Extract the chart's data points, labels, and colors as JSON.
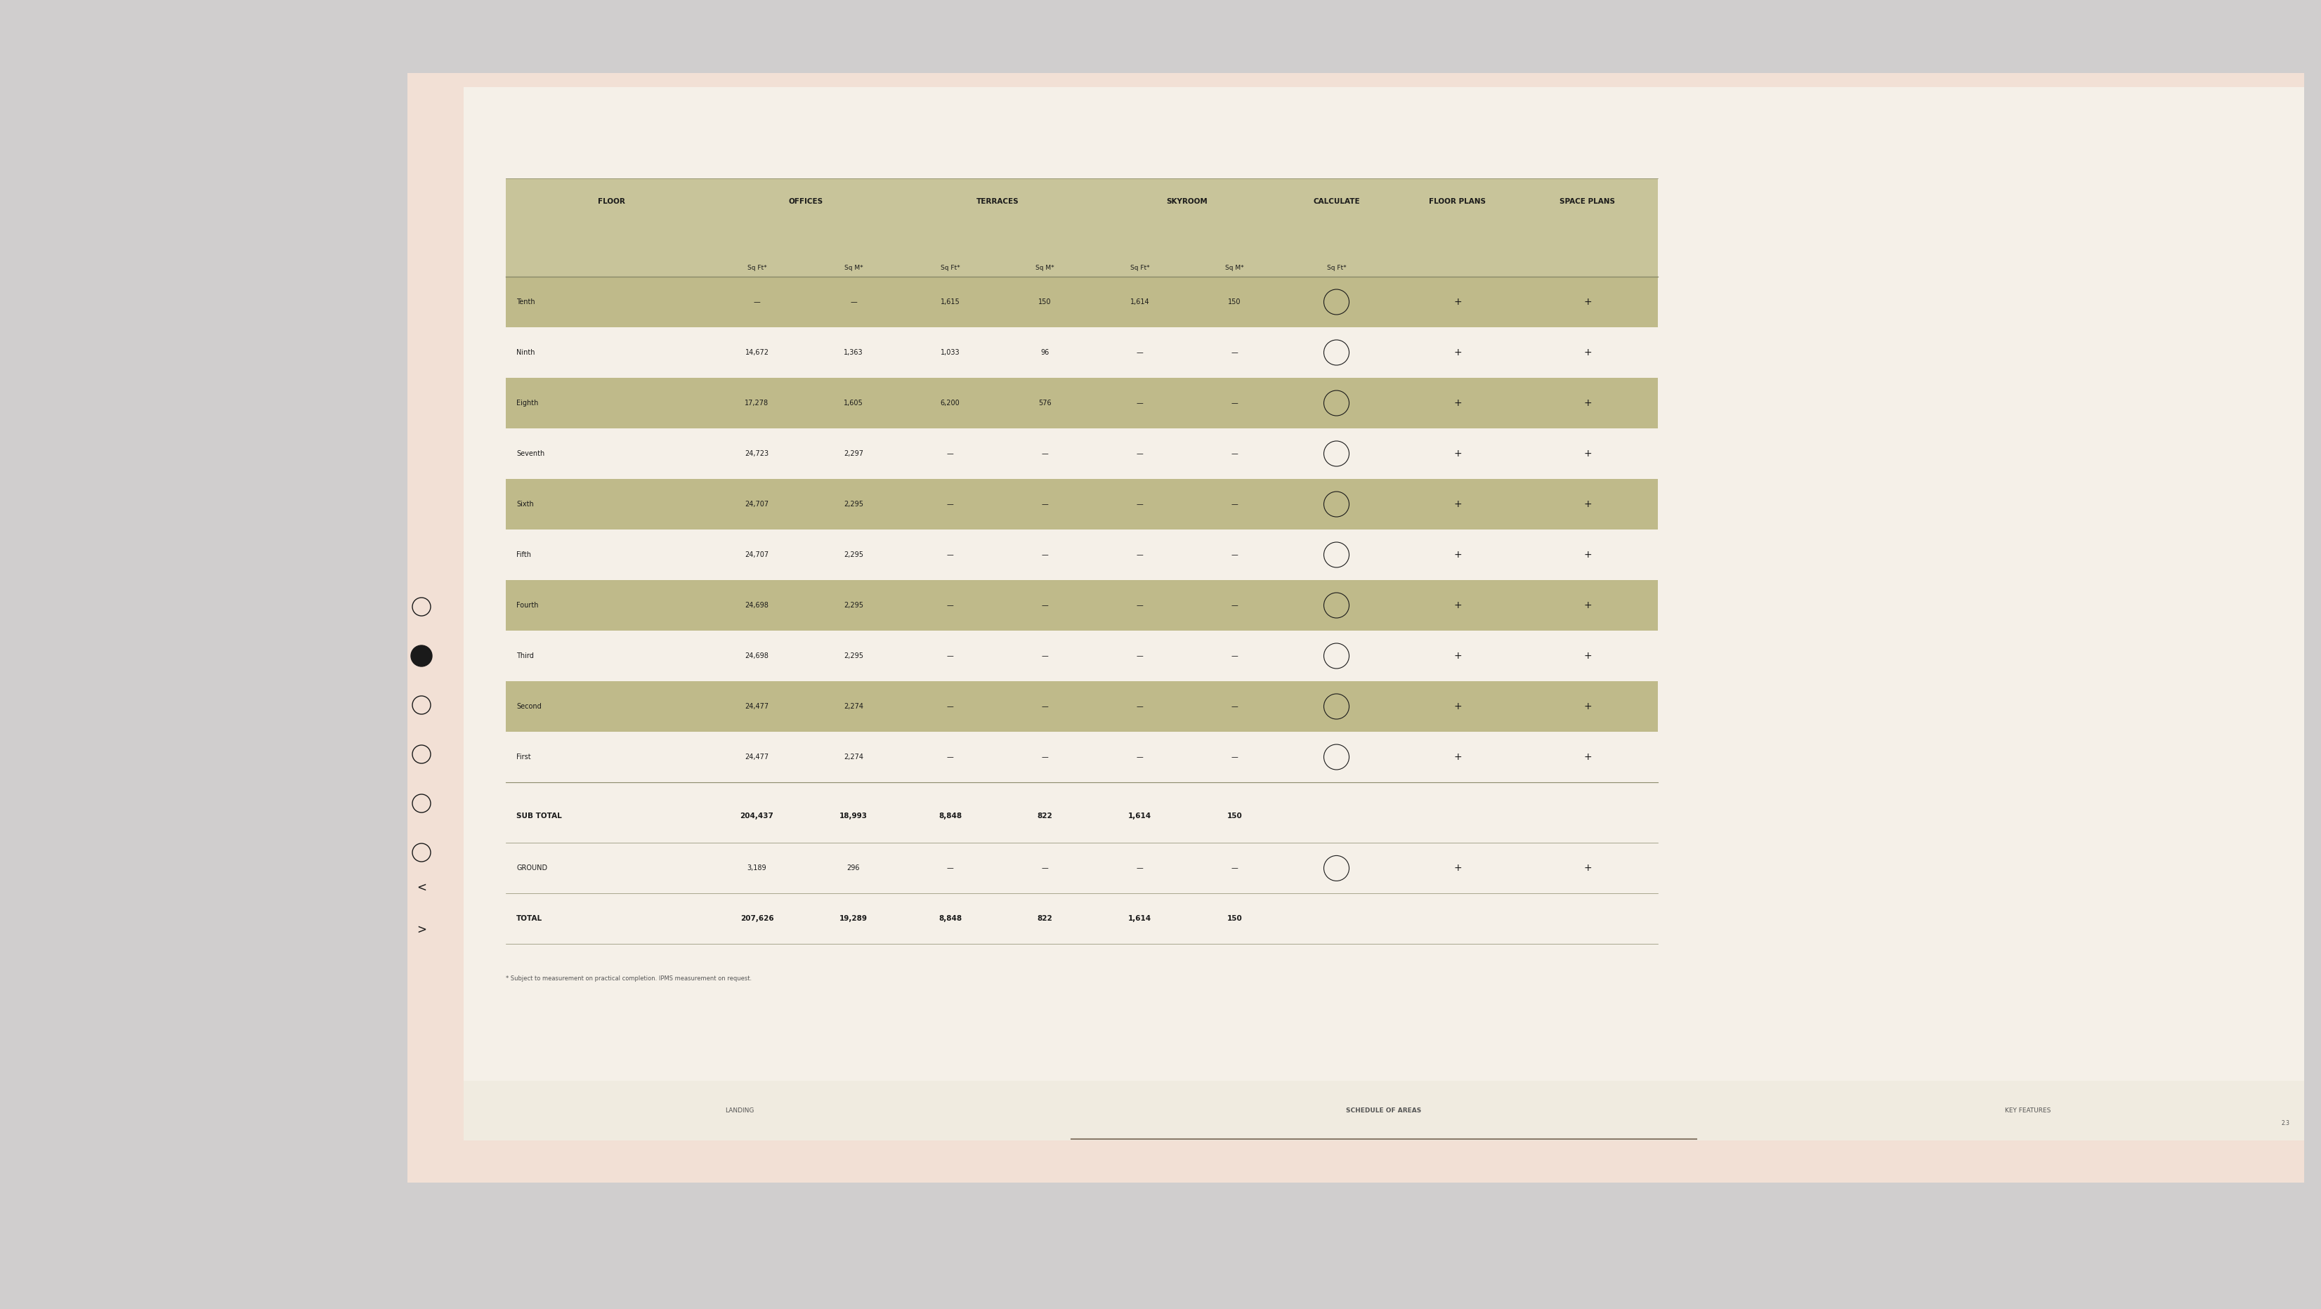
{
  "bg_color": "#d0cece",
  "outer_panel_color": "#f2e0d5",
  "inner_panel_color": "#f5f0e8",
  "table_bg_color": "#f5f0e8",
  "header_bg_color": "#c8c49a",
  "alt_row_color": "#bfba8a",
  "subtotal_bg_color": "#f5f0e8",
  "total_bg_color": "#f5f0e8",
  "separator_color": "#8a8a6a",
  "text_color": "#1a1a1a",
  "footer_text_color": "#555555",
  "columns": [
    "FLOOR",
    "OFFICES\nSq Ft*",
    "OFFICES\nSq M*",
    "TERRACES\nSq Ft*",
    "TERRACES\nSq M*",
    "SKYROOM\nSq Ft*",
    "SKYROOM\nSq M*",
    "CALCULATE\nSq Ft*",
    "FLOOR PLANS",
    "SPACE PLANS"
  ],
  "col_headers_line1": [
    "FLOOR",
    "OFFICES",
    "",
    "TERRACES",
    "",
    "SKYROOM",
    "",
    "CALCULATE",
    "FLOOR PLANS",
    "SPACE PLANS"
  ],
  "col_headers_line2": [
    "",
    "Sq Ft*",
    "Sq M*",
    "Sq Ft*",
    "Sq M*",
    "Sq Ft*",
    "Sq M*",
    "Sq Ft*",
    "",
    ""
  ],
  "rows": [
    [
      "Tenth",
      "—",
      "—",
      "1,615",
      "150",
      "1,614",
      "150",
      "",
      "+",
      "+"
    ],
    [
      "Ninth",
      "14,672",
      "1,363",
      "1,033",
      "96",
      "—",
      "—",
      "",
      "+",
      "+"
    ],
    [
      "Eighth",
      "17,278",
      "1,605",
      "6,200",
      "576",
      "—",
      "—",
      "",
      "+",
      "+"
    ],
    [
      "Seventh",
      "24,723",
      "2,297",
      "—",
      "—",
      "—",
      "—",
      "",
      "+",
      "+"
    ],
    [
      "Sixth",
      "24,707",
      "2,295",
      "—",
      "—",
      "—",
      "—",
      "",
      "+",
      "+"
    ],
    [
      "Fifth",
      "24,707",
      "2,295",
      "—",
      "—",
      "—",
      "—",
      "",
      "+",
      "+"
    ],
    [
      "Fourth",
      "24,698",
      "2,295",
      "—",
      "—",
      "—",
      "—",
      "",
      "+",
      "+"
    ],
    [
      "Third",
      "24,698",
      "2,295",
      "—",
      "—",
      "—",
      "—",
      "",
      "+",
      "+"
    ],
    [
      "Second",
      "24,477",
      "2,274",
      "—",
      "—",
      "—",
      "—",
      "",
      "+",
      "+"
    ],
    [
      "First",
      "24,477",
      "2,274",
      "—",
      "—",
      "—",
      "—",
      "",
      "+",
      "+"
    ]
  ],
  "subtotal_row": [
    "SUB TOTAL",
    "204,437",
    "18,993",
    "8,848",
    "822",
    "1,614",
    "150",
    "",
    "",
    ""
  ],
  "ground_row": [
    "GROUND",
    "3,189",
    "296",
    "—",
    "—",
    "—",
    "—",
    "",
    "+",
    "+"
  ],
  "total_row": [
    "TOTAL",
    "207,626",
    "19,289",
    "8,848",
    "822",
    "1,614",
    "150",
    "",
    "",
    ""
  ],
  "footnote": "* Subject to measurement on practical completion. IPMS measurement on request.",
  "nav_labels": [
    "LANDING",
    "SCHEDULE OF AREAS",
    "KEY FEATURES"
  ],
  "version": "2.3"
}
